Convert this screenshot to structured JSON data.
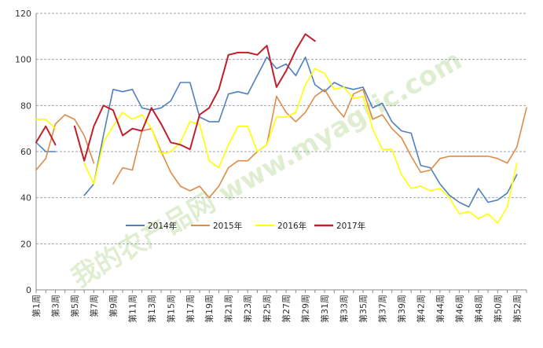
{
  "chart_data": {
    "type": "line",
    "title": "",
    "xlabel": "",
    "ylabel": "",
    "ylim": [
      0,
      120
    ],
    "yticks": [
      0,
      20,
      40,
      60,
      80,
      100,
      120
    ],
    "grid": "horizontal dashed",
    "legend_position": "inside bottom-left",
    "watermark": "我的农产品网 www.myagric.com",
    "x": [
      1,
      2,
      3,
      4,
      5,
      6,
      7,
      8,
      9,
      10,
      11,
      12,
      13,
      14,
      15,
      16,
      17,
      18,
      19,
      20,
      21,
      22,
      23,
      24,
      25,
      26,
      27,
      28,
      29,
      30,
      31,
      32,
      33,
      34,
      35,
      36,
      37,
      38,
      39,
      40,
      41,
      42,
      43,
      44,
      45,
      46,
      47,
      48,
      49,
      50,
      51,
      52
    ],
    "x_tick_labels": [
      {
        "x": 1,
        "label": "第1周"
      },
      {
        "x": 3,
        "label": "第3周"
      },
      {
        "x": 5,
        "label": "第5周"
      },
      {
        "x": 7,
        "label": "第7周"
      },
      {
        "x": 9,
        "label": "第9周"
      },
      {
        "x": 11,
        "label": "第11周"
      },
      {
        "x": 13,
        "label": "第13周"
      },
      {
        "x": 15,
        "label": "第15周"
      },
      {
        "x": 17,
        "label": "第17周"
      },
      {
        "x": 19,
        "label": "第19周"
      },
      {
        "x": 21,
        "label": "第21周"
      },
      {
        "x": 23,
        "label": "第23周"
      },
      {
        "x": 25,
        "label": "第25周"
      },
      {
        "x": 27,
        "label": "第27周"
      },
      {
        "x": 29,
        "label": "第29周"
      },
      {
        "x": 31,
        "label": "第31周"
      },
      {
        "x": 33,
        "label": "第33周"
      },
      {
        "x": 35,
        "label": "第35周"
      },
      {
        "x": 37,
        "label": "第37周"
      },
      {
        "x": 39,
        "label": "第39周"
      },
      {
        "x": 41,
        "label": "第42周"
      },
      {
        "x": 43,
        "label": "第44周"
      },
      {
        "x": 45,
        "label": "第46周"
      },
      {
        "x": 47,
        "label": "第48周"
      },
      {
        "x": 49,
        "label": "第50周"
      },
      {
        "x": 51,
        "label": "第52周"
      }
    ],
    "series": [
      {
        "name": "2014年",
        "color": "#4f81bd",
        "width": 1.6,
        "values": [
          64,
          60,
          60,
          null,
          null,
          41,
          46,
          67,
          87,
          86,
          87,
          79,
          78,
          79,
          82,
          90,
          90,
          75,
          73,
          73,
          85,
          86,
          85,
          93,
          101,
          96,
          98,
          93,
          101,
          89,
          86,
          90,
          88,
          87,
          88,
          79,
          81,
          73,
          69,
          68,
          54,
          53,
          46,
          41,
          38,
          36,
          44,
          38,
          39,
          42,
          50,
          null
        ]
      },
      {
        "name": "2015年",
        "color": "#de8b47",
        "width": 1.6,
        "values": [
          52,
          57,
          72,
          76,
          74,
          67,
          55,
          null,
          46,
          53,
          52,
          69,
          70,
          60,
          51,
          45,
          43,
          45,
          40,
          45,
          53,
          56,
          56,
          60,
          63,
          84,
          77,
          73,
          77,
          84,
          87,
          80,
          75,
          85,
          87,
          74,
          76,
          70,
          66,
          58,
          51,
          52,
          57,
          58,
          58,
          58,
          58,
          58,
          57,
          55,
          62,
          79
        ]
      },
      {
        "name": "2016年",
        "color": "#ffff00",
        "width": 1.6,
        "values": [
          74,
          74,
          70,
          null,
          null,
          55,
          46,
          64,
          71,
          77,
          74,
          76,
          70,
          59,
          60,
          64,
          73,
          72,
          56,
          53,
          63,
          71,
          71,
          60,
          63,
          75,
          75,
          77,
          89,
          96,
          94,
          87,
          88,
          83,
          84,
          70,
          61,
          61,
          50,
          44,
          45,
          43,
          44,
          40,
          33,
          34,
          31,
          33,
          29,
          36,
          55,
          null
        ]
      },
      {
        "name": "2017年",
        "color": "#c0202a",
        "width": 2.0,
        "values": [
          64,
          71,
          63,
          null,
          71,
          56,
          71,
          80,
          78,
          67,
          70,
          69,
          79,
          72,
          64,
          63,
          61,
          76,
          79,
          87,
          102,
          103,
          103,
          102,
          106,
          88,
          95,
          104,
          111,
          108,
          null,
          null,
          null,
          null,
          null,
          null,
          null,
          null,
          null,
          null,
          null,
          null,
          null,
          null,
          null,
          null,
          null,
          null,
          null,
          null,
          null,
          null
        ]
      }
    ]
  }
}
